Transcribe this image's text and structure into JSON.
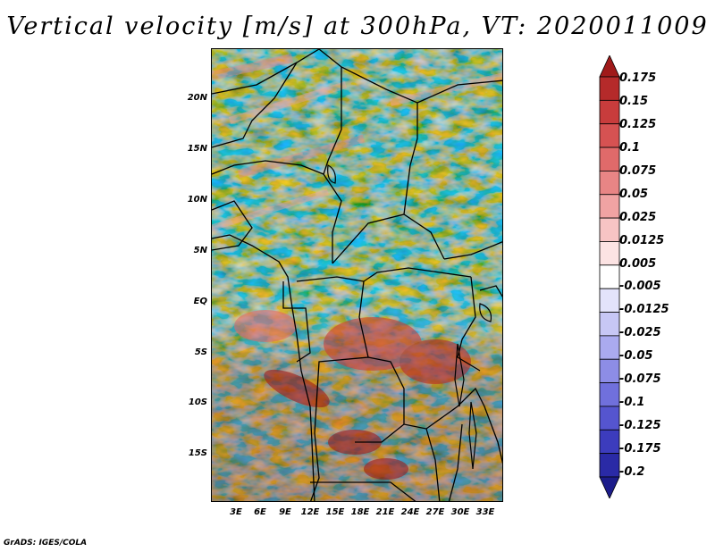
{
  "title": "Vertical velocity [m/s] at 300hPa, VT: 2020011009",
  "footer": "GrADS: IGES/COLA",
  "map": {
    "lat_ticks": [
      "20N",
      "15N",
      "10N",
      "5N",
      "EQ",
      "5S",
      "10S",
      "15S"
    ],
    "lon_ticks": [
      "3E",
      "6E",
      "9E",
      "12E",
      "15E",
      "18E",
      "21E",
      "24E",
      "27E",
      "30E",
      "33E"
    ],
    "extent": {
      "lon_min": 0,
      "lon_max": 35,
      "lat_min": -19.5,
      "lat_max": 25
    }
  },
  "colorbar": {
    "labels": [
      "0.175",
      "0.15",
      "0.125",
      "0.1",
      "0.075",
      "0.05",
      "0.025",
      "0.0125",
      "0.005",
      "-0.005",
      "-0.0125",
      "-0.025",
      "-0.05",
      "-0.075",
      "-0.1",
      "-0.125",
      "-0.175",
      "-0.2"
    ],
    "colors": [
      "#a01a1a",
      "#b52a2a",
      "#c83c3c",
      "#d65252",
      "#e06a6a",
      "#e88585",
      "#f0a3a3",
      "#f7c4c4",
      "#fce3e3",
      "#ffffff",
      "#e3e3fb",
      "#c7c7f5",
      "#aaaaef",
      "#8d8de6",
      "#7070dc",
      "#5555cf",
      "#3c3cbd",
      "#2a2aa6",
      "#1c1c8a"
    ]
  },
  "colors": {
    "positive": "#c0392b",
    "negative": "#3b3bd0",
    "neutral": "#ffffff"
  }
}
